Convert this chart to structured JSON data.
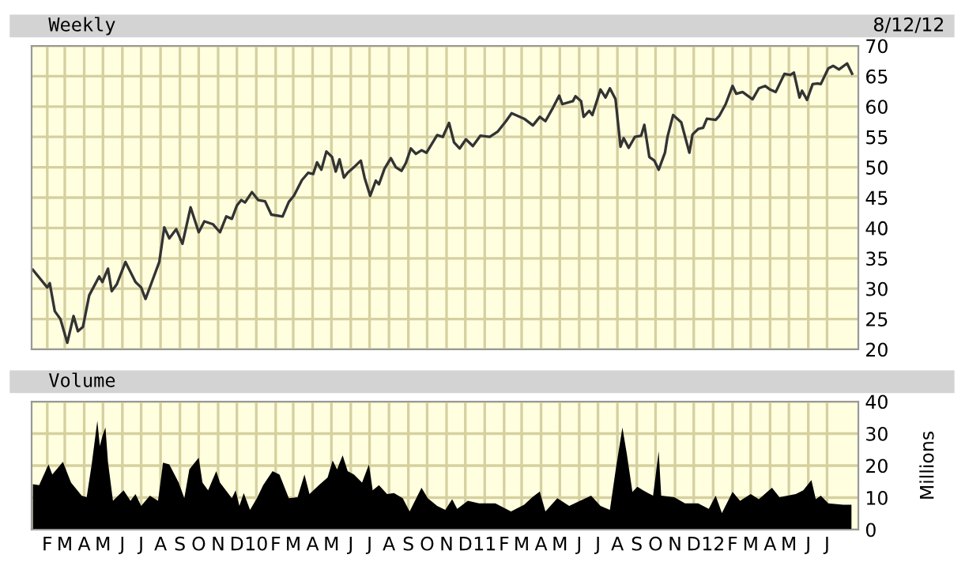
{
  "chart_data": [
    {
      "type": "line",
      "title": "Weekly",
      "annotations": [
        "8/12/12"
      ],
      "color": "#333333",
      "grid": true,
      "tick_labels": "y",
      "xlim": [
        "2009-01-07",
        "2012-08-20"
      ],
      "ylim": [
        20,
        70
      ],
      "yticks": [
        20,
        25,
        30,
        35,
        40,
        45,
        50,
        55,
        60,
        65,
        70
      ],
      "xticks": [
        {
          "value": "2009-02-01",
          "label": null
        },
        {
          "value": "2009-03-01",
          "label": null
        },
        {
          "value": "2009-04-01",
          "label": null
        },
        {
          "value": "2009-05-01",
          "label": null
        },
        {
          "value": "2009-06-01",
          "label": null
        },
        {
          "value": "2009-07-01",
          "label": null
        },
        {
          "value": "2009-08-01",
          "label": null
        },
        {
          "value": "2009-09-01",
          "label": null
        },
        {
          "value": "2009-10-01",
          "label": null
        },
        {
          "value": "2009-11-01",
          "label": null
        },
        {
          "value": "2009-12-01",
          "label": null
        },
        {
          "value": "2010-01-01",
          "label": null
        },
        {
          "value": "2010-02-01",
          "label": null
        },
        {
          "value": "2010-03-01",
          "label": null
        },
        {
          "value": "2010-04-01",
          "label": null
        },
        {
          "value": "2010-05-01",
          "label": null
        },
        {
          "value": "2010-06-01",
          "label": null
        },
        {
          "value": "2010-07-01",
          "label": null
        },
        {
          "value": "2010-08-01",
          "label": null
        },
        {
          "value": "2010-09-01",
          "label": null
        },
        {
          "value": "2010-10-01",
          "label": null
        },
        {
          "value": "2010-11-01",
          "label": null
        },
        {
          "value": "2010-12-01",
          "label": null
        },
        {
          "value": "2011-01-01",
          "label": null
        },
        {
          "value": "2011-02-01",
          "label": null
        },
        {
          "value": "2011-03-01",
          "label": null
        },
        {
          "value": "2011-04-01",
          "label": null
        },
        {
          "value": "2011-05-01",
          "label": null
        },
        {
          "value": "2011-06-01",
          "label": null
        },
        {
          "value": "2011-07-01",
          "label": null
        },
        {
          "value": "2011-08-01",
          "label": null
        },
        {
          "value": "2011-09-01",
          "label": null
        },
        {
          "value": "2011-10-01",
          "label": null
        },
        {
          "value": "2011-11-01",
          "label": null
        },
        {
          "value": "2011-12-01",
          "label": null
        },
        {
          "value": "2012-01-01",
          "label": null
        },
        {
          "value": "2012-02-01",
          "label": null
        },
        {
          "value": "2012-03-01",
          "label": null
        },
        {
          "value": "2012-04-01",
          "label": null
        },
        {
          "value": "2012-05-01",
          "label": null
        },
        {
          "value": "2012-06-01",
          "label": null
        },
        {
          "value": "2012-07-01",
          "label": null
        }
      ],
      "x": [
        "2009-01-09",
        "2009-02-01",
        "2009-02-05",
        "2009-02-13",
        "2009-02-22",
        "2009-03-05",
        "2009-03-15",
        "2009-03-22",
        "2009-03-30",
        "2009-04-09",
        "2009-04-25",
        "2009-04-30",
        "2009-05-09",
        "2009-05-15",
        "2009-05-23",
        "2009-06-06",
        "2009-06-22",
        "2009-07-01",
        "2009-07-08",
        "2009-07-30",
        "2009-08-07",
        "2009-08-15",
        "2009-08-26",
        "2009-09-05",
        "2009-09-18",
        "2009-10-01",
        "2009-10-10",
        "2009-10-24",
        "2009-11-04",
        "2009-11-14",
        "2009-11-23",
        "2009-12-01",
        "2009-12-08",
        "2009-12-14",
        "2009-12-25",
        "2010-01-04",
        "2010-01-15",
        "2010-01-25",
        "2010-02-12",
        "2010-02-22",
        "2010-03-02",
        "2010-03-15",
        "2010-03-25",
        "2010-04-02",
        "2010-04-08",
        "2010-04-15",
        "2010-04-23",
        "2010-05-02",
        "2010-05-08",
        "2010-05-14",
        "2010-05-21",
        "2010-05-27",
        "2010-06-06",
        "2010-06-17",
        "2010-06-23",
        "2010-07-02",
        "2010-07-11",
        "2010-07-16",
        "2010-07-25",
        "2010-08-04",
        "2010-08-12",
        "2010-08-21",
        "2010-08-28",
        "2010-09-05",
        "2010-09-13",
        "2010-09-22",
        "2010-09-30",
        "2010-10-17",
        "2010-10-26",
        "2010-11-05",
        "2010-11-13",
        "2010-11-22",
        "2010-12-02",
        "2010-12-13",
        "2010-12-25",
        "2011-01-09",
        "2011-01-22",
        "2011-02-04",
        "2011-02-13",
        "2011-03-05",
        "2011-03-19",
        "2011-03-30",
        "2011-04-08",
        "2011-04-20",
        "2011-04-30",
        "2011-05-05",
        "2011-05-22",
        "2011-05-26",
        "2011-06-04",
        "2011-06-08",
        "2011-06-17",
        "2011-06-22",
        "2011-07-05",
        "2011-07-13",
        "2011-07-20",
        "2011-07-29",
        "2011-08-06",
        "2011-08-11",
        "2011-08-19",
        "2011-08-29",
        "2011-09-08",
        "2011-09-13",
        "2011-09-21",
        "2011-09-29",
        "2011-10-06",
        "2011-10-16",
        "2011-10-20",
        "2011-10-29",
        "2011-11-11",
        "2011-11-24",
        "2011-11-29",
        "2011-12-08",
        "2011-12-16",
        "2011-12-22",
        "2012-01-05",
        "2012-01-11",
        "2012-01-21",
        "2012-02-01",
        "2012-02-07",
        "2012-02-17",
        "2012-03-04",
        "2012-03-14",
        "2012-03-24",
        "2012-04-01",
        "2012-04-10",
        "2012-04-24",
        "2012-05-03",
        "2012-05-09",
        "2012-05-18",
        "2012-05-22",
        "2012-05-30",
        "2012-06-08",
        "2012-06-16",
        "2012-06-21",
        "2012-07-03",
        "2012-07-11",
        "2012-07-20",
        "2012-08-02",
        "2012-08-10"
      ],
      "values": [
        33.1,
        30.2,
        30.9,
        26.3,
        25.0,
        21.1,
        25.5,
        23.0,
        23.7,
        28.9,
        32.0,
        31.1,
        33.3,
        29.6,
        30.7,
        34.4,
        31.1,
        30.2,
        28.3,
        34.4,
        40.1,
        38.3,
        39.8,
        37.4,
        43.4,
        39.3,
        41.1,
        40.6,
        39.3,
        41.9,
        41.5,
        43.7,
        44.6,
        44.2,
        45.9,
        44.6,
        44.4,
        42.2,
        41.9,
        44.3,
        45.3,
        47.9,
        49.1,
        48.9,
        50.8,
        49.6,
        52.6,
        51.7,
        49.3,
        51.3,
        48.3,
        49.1,
        50.0,
        51.1,
        48.3,
        45.3,
        47.8,
        47.2,
        49.8,
        51.5,
        50.0,
        49.4,
        50.7,
        53.1,
        52.2,
        52.8,
        52.4,
        55.3,
        55.0,
        57.3,
        54.1,
        53.1,
        54.6,
        53.5,
        55.2,
        55.0,
        55.9,
        57.6,
        58.9,
        58.0,
        56.9,
        58.3,
        57.6,
        59.8,
        61.8,
        60.4,
        60.9,
        61.7,
        60.9,
        58.3,
        59.3,
        58.6,
        62.8,
        61.5,
        63.0,
        61.2,
        53.4,
        54.8,
        53.2,
        55.0,
        55.2,
        57.0,
        51.7,
        51.1,
        49.6,
        52.4,
        55.0,
        58.6,
        57.4,
        52.4,
        55.4,
        56.3,
        56.5,
        58.0,
        57.8,
        58.5,
        60.4,
        63.4,
        62.1,
        62.4,
        61.2,
        63.0,
        63.4,
        62.8,
        62.4,
        65.4,
        65.2,
        65.6,
        61.5,
        62.6,
        61.1,
        63.7,
        63.8,
        63.7,
        66.3,
        66.7,
        66.1,
        67.1,
        65.4
      ]
    },
    {
      "type": "area",
      "title": "Volume",
      "ylabel": "Millions",
      "color": "#000000",
      "grid": true,
      "xlim": [
        "2009-01-07",
        "2012-08-20"
      ],
      "ylim": [
        0,
        40
      ],
      "yticks": [
        0,
        10,
        20,
        30,
        40
      ],
      "xticks": [
        {
          "value": "2009-02-01",
          "label": "F"
        },
        {
          "value": "2009-03-01",
          "label": "M"
        },
        {
          "value": "2009-04-01",
          "label": "A"
        },
        {
          "value": "2009-05-01",
          "label": "M"
        },
        {
          "value": "2009-06-01",
          "label": "J"
        },
        {
          "value": "2009-07-01",
          "label": "J"
        },
        {
          "value": "2009-08-01",
          "label": "A"
        },
        {
          "value": "2009-09-01",
          "label": "S"
        },
        {
          "value": "2009-10-01",
          "label": "O"
        },
        {
          "value": "2009-11-01",
          "label": "N"
        },
        {
          "value": "2009-12-01",
          "label": "D"
        },
        {
          "value": "2010-01-01",
          "label": "10"
        },
        {
          "value": "2010-02-01",
          "label": "F"
        },
        {
          "value": "2010-03-01",
          "label": "M"
        },
        {
          "value": "2010-04-01",
          "label": "A"
        },
        {
          "value": "2010-05-01",
          "label": "M"
        },
        {
          "value": "2010-06-01",
          "label": "J"
        },
        {
          "value": "2010-07-01",
          "label": "J"
        },
        {
          "value": "2010-08-01",
          "label": "A"
        },
        {
          "value": "2010-09-01",
          "label": "S"
        },
        {
          "value": "2010-10-01",
          "label": "O"
        },
        {
          "value": "2010-11-01",
          "label": "N"
        },
        {
          "value": "2010-12-01",
          "label": "D"
        },
        {
          "value": "2011-01-01",
          "label": "11"
        },
        {
          "value": "2011-02-01",
          "label": "F"
        },
        {
          "value": "2011-03-01",
          "label": "M"
        },
        {
          "value": "2011-04-01",
          "label": "A"
        },
        {
          "value": "2011-05-01",
          "label": "M"
        },
        {
          "value": "2011-06-01",
          "label": "J"
        },
        {
          "value": "2011-07-01",
          "label": "J"
        },
        {
          "value": "2011-08-01",
          "label": "A"
        },
        {
          "value": "2011-09-01",
          "label": "S"
        },
        {
          "value": "2011-10-01",
          "label": "O"
        },
        {
          "value": "2011-11-01",
          "label": "N"
        },
        {
          "value": "2011-12-01",
          "label": "D"
        },
        {
          "value": "2012-01-01",
          "label": "12"
        },
        {
          "value": "2012-02-01",
          "label": "F"
        },
        {
          "value": "2012-03-01",
          "label": "M"
        },
        {
          "value": "2012-04-01",
          "label": "A"
        },
        {
          "value": "2012-05-01",
          "label": "M"
        },
        {
          "value": "2012-06-01",
          "label": "J"
        },
        {
          "value": "2012-07-01",
          "label": "J"
        }
      ],
      "x": [
        "2009-01-09",
        "2009-01-19",
        "2009-02-03",
        "2009-02-09",
        "2009-02-26",
        "2009-03-11",
        "2009-03-28",
        "2009-04-05",
        "2009-04-13",
        "2009-04-22",
        "2009-04-26",
        "2009-05-01",
        "2009-05-05",
        "2009-05-09",
        "2009-05-17",
        "2009-06-03",
        "2009-06-14",
        "2009-06-22",
        "2009-07-01",
        "2009-07-15",
        "2009-07-28",
        "2009-08-05",
        "2009-08-15",
        "2009-08-30",
        "2009-09-08",
        "2009-09-16",
        "2009-10-01",
        "2009-10-07",
        "2009-10-16",
        "2009-10-29",
        "2009-11-04",
        "2009-11-23",
        "2009-11-29",
        "2009-12-05",
        "2009-12-12",
        "2009-12-22",
        "2010-01-02",
        "2010-01-12",
        "2010-01-27",
        "2010-02-07",
        "2010-02-22",
        "2010-03-08",
        "2010-03-19",
        "2010-03-27",
        "2010-04-11",
        "2010-04-25",
        "2010-05-03",
        "2010-05-10",
        "2010-05-19",
        "2010-05-27",
        "2010-06-06",
        "2010-06-19",
        "2010-06-30",
        "2010-07-06",
        "2010-07-16",
        "2010-07-29",
        "2010-08-09",
        "2010-08-23",
        "2010-09-03",
        "2010-09-22",
        "2010-10-02",
        "2010-10-17",
        "2010-10-30",
        "2010-11-10",
        "2010-11-18",
        "2010-12-05",
        "2010-12-23",
        "2011-01-18",
        "2011-02-12",
        "2011-03-05",
        "2011-03-18",
        "2011-03-30",
        "2011-04-08",
        "2011-04-27",
        "2011-05-16",
        "2011-05-28",
        "2011-06-20",
        "2011-07-05",
        "2011-07-20",
        "2011-07-30",
        "2011-08-09",
        "2011-08-16",
        "2011-08-25",
        "2011-09-02",
        "2011-09-11",
        "2011-09-19",
        "2011-09-27",
        "2011-10-06",
        "2011-10-10",
        "2011-10-31",
        "2011-11-17",
        "2011-12-08",
        "2011-12-25",
        "2012-01-05",
        "2012-01-15",
        "2012-02-01",
        "2012-02-13",
        "2012-03-01",
        "2012-03-14",
        "2012-04-04",
        "2012-04-16",
        "2012-05-12",
        "2012-05-24",
        "2012-06-06",
        "2012-06-13",
        "2012-06-21",
        "2012-07-03",
        "2012-07-27",
        "2012-08-09"
      ],
      "values": [
        14.2,
        13.9,
        20.4,
        17.2,
        21.2,
        14.7,
        10.6,
        10.1,
        20.4,
        34.0,
        26.1,
        29.8,
        31.9,
        21.2,
        9.0,
        12.3,
        9.0,
        11.1,
        7.4,
        10.6,
        9.0,
        20.9,
        20.4,
        14.7,
        9.8,
        18.8,
        22.5,
        14.7,
        12.3,
        18.3,
        14.7,
        9.8,
        12.3,
        7.4,
        11.4,
        6.2,
        9.8,
        13.9,
        18.3,
        17.2,
        9.8,
        10.1,
        17.2,
        11.1,
        13.9,
        16.3,
        21.6,
        18.8,
        23.2,
        18.3,
        17.2,
        14.7,
        20.4,
        12.3,
        13.9,
        11.1,
        11.4,
        9.8,
        5.7,
        13.1,
        9.8,
        7.4,
        6.2,
        9.5,
        6.5,
        9.0,
        8.2,
        8.2,
        5.7,
        7.8,
        10.1,
        11.9,
        5.7,
        9.8,
        7.4,
        8.5,
        10.6,
        7.4,
        6.2,
        19.6,
        31.9,
        23.7,
        11.8,
        13.4,
        12.3,
        11.4,
        10.6,
        24.5,
        10.6,
        10.1,
        8.2,
        8.2,
        6.5,
        10.6,
        5.2,
        11.8,
        9.0,
        11.1,
        9.5,
        13.1,
        10.1,
        11.1,
        12.3,
        15.5,
        9.5,
        10.6,
        8.2,
        7.8,
        7.8
      ]
    }
  ]
}
